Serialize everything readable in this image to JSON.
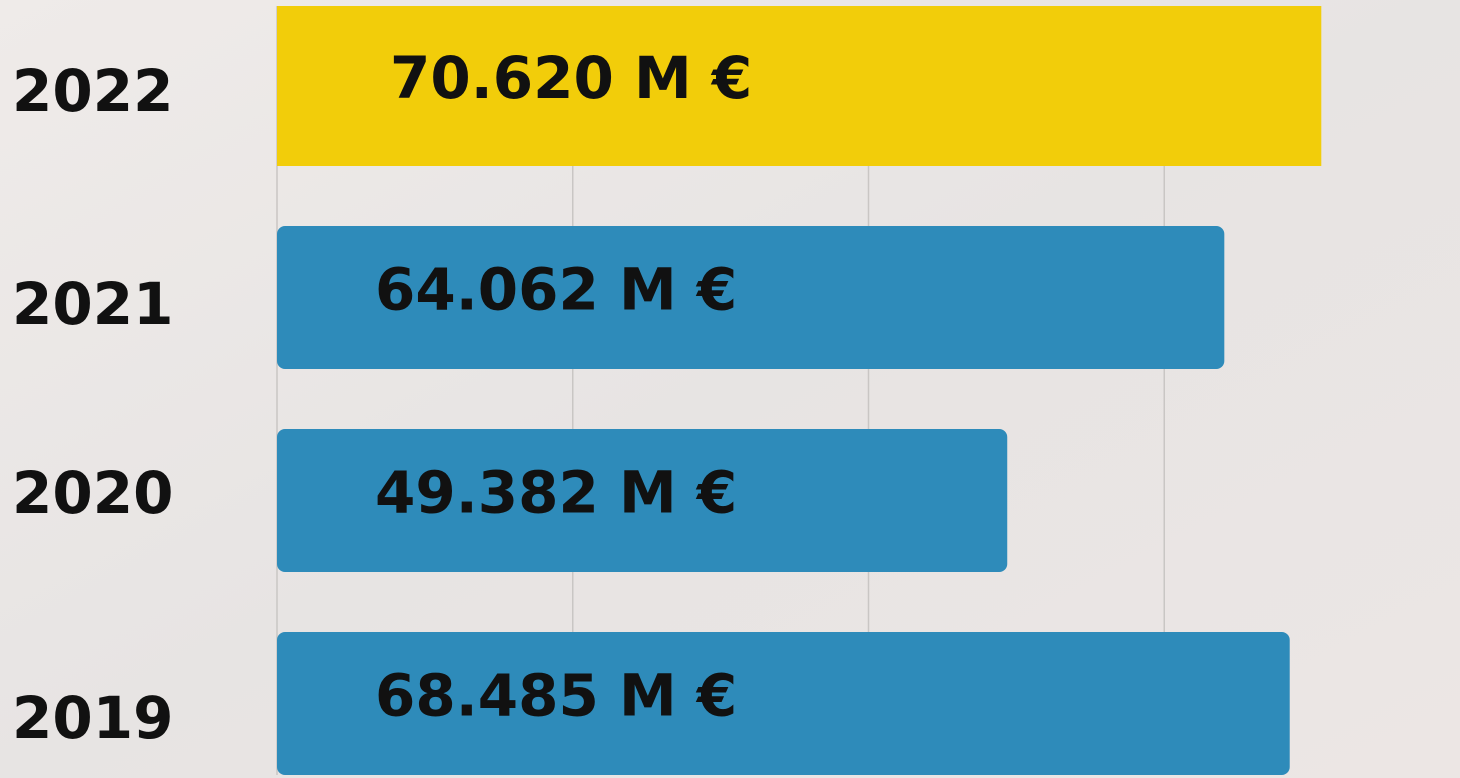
{
  "chart_data": {
    "type": "bar",
    "orientation": "horizontal",
    "categories": [
      "2022",
      "2021",
      "2020",
      "2019"
    ],
    "values": [
      70620,
      64062,
      49382,
      68485
    ],
    "value_labels": [
      "70.620 M €",
      "64.062 M €",
      "49.382 M €",
      "68.485 M €"
    ],
    "colors": [
      "#f2cd0a",
      "#2e8bba",
      "#2e8bba",
      "#2e8bba"
    ],
    "xlim": [
      0,
      80000
    ],
    "xticks": [
      0,
      20000,
      40000,
      60000
    ],
    "grid": true
  }
}
